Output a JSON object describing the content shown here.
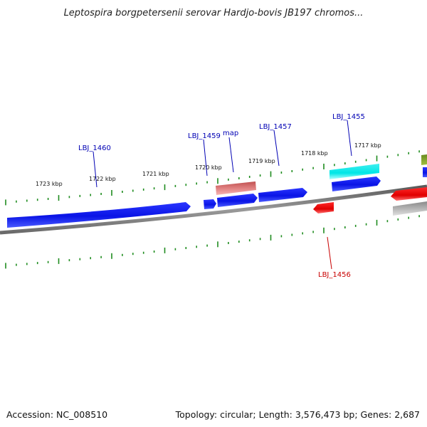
{
  "title": "Leptospira borgpetersenii serovar Hardjo-bovis JB197 chromos...",
  "footer": {
    "accession": "Accession: NC_008510",
    "summary": "Topology: circular; Length: 3,576,473 bp; Genes: 2,687"
  },
  "scale_labels": [
    "1723 kbp",
    "1722 kbp",
    "1721 kbp",
    "1720 kbp",
    "1719 kbp",
    "1718 kbp",
    "1717 kbp"
  ],
  "gene_labels": [
    "LBJ_1460",
    "LBJ_1459",
    "map",
    "LBJ_1457",
    "LBJ_1455",
    "LBJ_1456"
  ],
  "colors": {
    "forward_cds": "#0a14e6",
    "reverse_cds": "#e60a0a",
    "rna": "#00e6e6",
    "tick": "#1e8c1e",
    "backbone": "#7f7f7f",
    "label_forward": "#0000b4",
    "label_reverse": "#c80000"
  }
}
